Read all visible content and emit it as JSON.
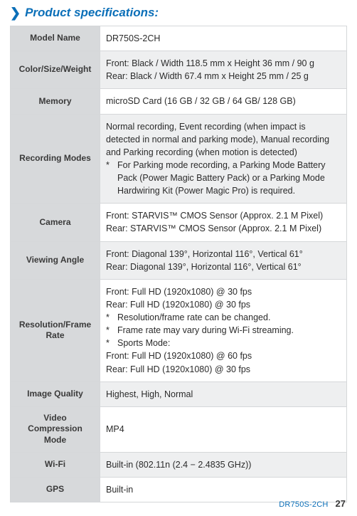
{
  "title": "Product specifications:",
  "rows": [
    {
      "label": "Model Name",
      "value": [
        "DR750S-2CH"
      ],
      "alt": false
    },
    {
      "label": "Color/Size/Weight",
      "value": [
        "Front: Black / Width 118.5 mm x Height 36 mm / 90 g",
        "Rear: Black / Width 67.4 mm x Height 25 mm / 25 g"
      ],
      "alt": true
    },
    {
      "label": "Memory",
      "value": [
        "microSD Card (16 GB / 32 GB / 64 GB/ 128 GB)"
      ],
      "alt": false
    },
    {
      "label": "Recording Modes",
      "value": [
        "Normal recording, Event recording (when impact is detected in normal and parking mode), Manual recording and Parking recording (when motion is detected)",
        {
          "note": "For Parking mode recording, a Parking Mode Battery Pack (Power Magic Battery Pack) or a Parking Mode Hardwiring Kit (Power Magic Pro) is required."
        }
      ],
      "alt": true
    },
    {
      "label": "Camera",
      "value": [
        "Front: STARVIS™ CMOS Sensor (Approx. 2.1 M Pixel)",
        "Rear: STARVIS™ CMOS Sensor (Approx. 2.1 M Pixel)"
      ],
      "alt": false
    },
    {
      "label": "Viewing Angle",
      "value": [
        "Front: Diagonal 139°, Horizontal 116°, Vertical 61°",
        "Rear: Diagonal 139°, Horizontal 116°, Vertical 61°"
      ],
      "alt": true
    },
    {
      "label": "Resolution/Frame Rate",
      "value": [
        "Front: Full HD (1920x1080) @ 30 fps",
        "Rear: Full HD (1920x1080) @ 30 fps",
        {
          "note": "Resolution/frame rate can be changed."
        },
        {
          "note": "Frame rate may vary during Wi-Fi streaming."
        },
        {
          "note": "Sports Mode:"
        },
        "Front: Full HD (1920x1080) @ 60 fps",
        "Rear: Full HD (1920x1080) @ 30 fps"
      ],
      "alt": false
    },
    {
      "label": "Image Quality",
      "value": [
        "Highest, High, Normal"
      ],
      "alt": true
    },
    {
      "label": "Video Compression Mode",
      "value": [
        "MP4"
      ],
      "alt": false
    },
    {
      "label": "Wi-Fi",
      "value": [
        "Built-in (802.11n (2.4 − 2.4835 GHz))"
      ],
      "alt": true
    },
    {
      "label": "GPS",
      "value": [
        "Built-in"
      ],
      "alt": false
    }
  ],
  "footer": {
    "model": "DR750S-2CH",
    "page": "27"
  },
  "colors": {
    "brand": "#0b6fb8",
    "label_bg": "#d7d9db",
    "alt_bg": "#eeeff0",
    "border": "#d5d7d9"
  }
}
